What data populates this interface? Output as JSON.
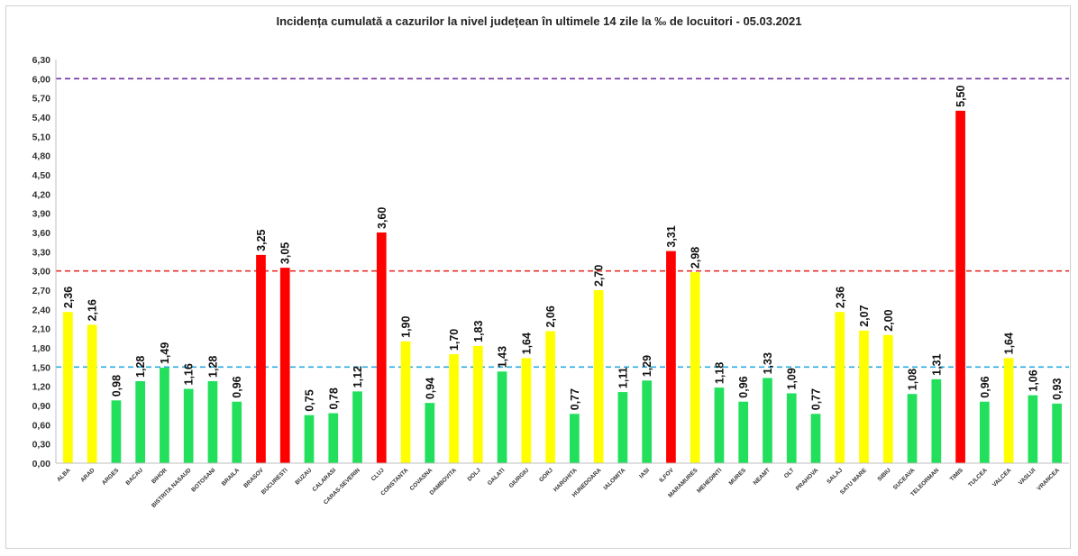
{
  "chart_data": {
    "type": "bar",
    "title": "Incidența cumulată a cazurilor la nivel județean în ultimele 14 zile la ‰ de locuitori - 05.03.2021",
    "xlabel": "",
    "ylabel": "",
    "ylim": [
      0,
      6.3
    ],
    "y_ticks": [
      "0,00",
      "0,30",
      "0,60",
      "0,90",
      "1,20",
      "1,50",
      "1,80",
      "2,10",
      "2,40",
      "2,70",
      "3,00",
      "3,30",
      "3,60",
      "3,90",
      "4,20",
      "4,50",
      "4,80",
      "5,10",
      "5,40",
      "5,70",
      "6,00",
      "6,30"
    ],
    "categories": [
      "ALBA",
      "ARAD",
      "ARGES",
      "BACAU",
      "BIHOR",
      "BISTRITA NASAUD",
      "BOTOSANI",
      "BRAILA",
      "BRASOV",
      "BUCURESTI",
      "BUZAU",
      "CALARASI",
      "CARAS-SEVERIN",
      "CLUJ",
      "CONSTANTA",
      "COVASNA",
      "DAMBOVITA",
      "DOLJ",
      "GALATI",
      "GIURGIU",
      "GORJ",
      "HARGHITA",
      "HUNEDOARA",
      "IALOMITA",
      "IASI",
      "ILFOV",
      "MARAMURES",
      "MEHEDINTI",
      "MURES",
      "NEAMT",
      "OLT",
      "PRAHOVA",
      "SALAJ",
      "SATU MARE",
      "SIBIU",
      "SUCEAVA",
      "TELEORMAN",
      "TIMIS",
      "TULCEA",
      "VALCEA",
      "VASLUI",
      "VRANCEA"
    ],
    "values": [
      2.36,
      2.16,
      0.98,
      1.28,
      1.49,
      1.16,
      1.28,
      0.96,
      3.25,
      3.05,
      0.75,
      0.78,
      1.12,
      3.6,
      1.9,
      0.94,
      1.7,
      1.83,
      1.43,
      1.64,
      2.06,
      0.77,
      2.7,
      1.11,
      1.29,
      3.31,
      2.98,
      1.18,
      0.96,
      1.33,
      1.09,
      0.77,
      2.36,
      2.07,
      2.0,
      1.08,
      1.31,
      5.5,
      0.96,
      1.64,
      1.06,
      0.93
    ],
    "value_labels": [
      "2,36",
      "2,16",
      "0,98",
      "1,28",
      "1,49",
      "1,16",
      "1,28",
      "0,96",
      "3,25",
      "3,05",
      "0,75",
      "0,78",
      "1,12",
      "3,60",
      "1,90",
      "0,94",
      "1,70",
      "1,83",
      "1,43",
      "1,64",
      "2,06",
      "0,77",
      "2,70",
      "1,11",
      "1,29",
      "3,31",
      "2,98",
      "1,18",
      "0,96",
      "1,33",
      "1,09",
      "0,77",
      "2,36",
      "2,07",
      "2,00",
      "1,08",
      "1,31",
      "5,50",
      "0,96",
      "1,64",
      "1,06",
      "0,93"
    ],
    "bar_colors": [
      "yellow",
      "yellow",
      "green",
      "green",
      "green",
      "green",
      "green",
      "green",
      "red",
      "red",
      "green",
      "green",
      "green",
      "red",
      "yellow",
      "green",
      "yellow",
      "yellow",
      "green",
      "yellow",
      "yellow",
      "green",
      "yellow",
      "green",
      "green",
      "red",
      "yellow",
      "green",
      "green",
      "green",
      "green",
      "green",
      "yellow",
      "yellow",
      "yellow",
      "green",
      "green",
      "red",
      "green",
      "yellow",
      "green",
      "green"
    ],
    "reference_lines": [
      {
        "value": 1.5,
        "color": "#29abe2"
      },
      {
        "value": 3.0,
        "color": "#e8302a"
      },
      {
        "value": 6.0,
        "color": "#7030a0"
      }
    ],
    "colors": {
      "green": "#22e05c",
      "yellow": "#ffff00",
      "red": "#ff0000"
    },
    "grid": false,
    "legend": "none"
  }
}
